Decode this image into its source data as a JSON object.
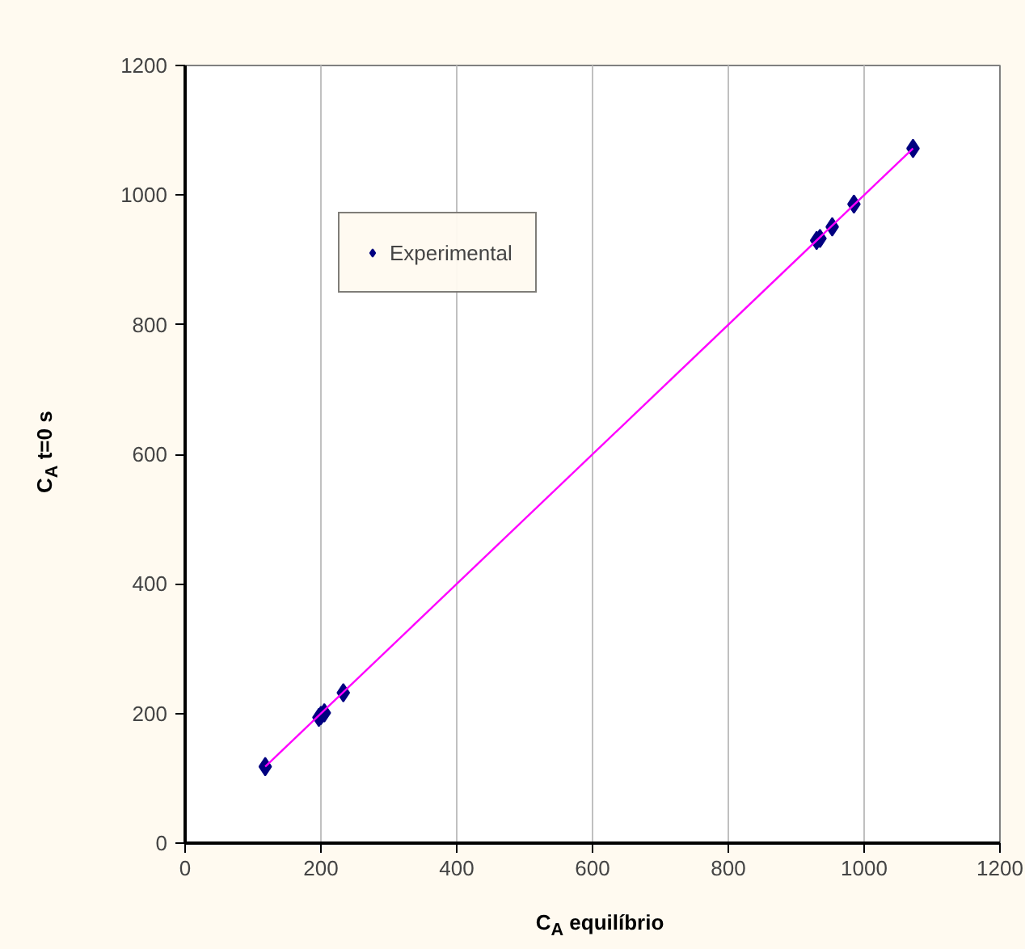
{
  "chart_data": {
    "type": "scatter",
    "xlabel": "C$_{A}$ equilíbrio",
    "ylabel": "C$_{A}$ t=0 s",
    "xlim": [
      0,
      1200
    ],
    "ylim": [
      0,
      1200
    ],
    "xticks": [
      0,
      200,
      400,
      600,
      800,
      1000,
      1200
    ],
    "yticks": [
      0,
      200,
      400,
      600,
      800,
      1000,
      1200
    ],
    "grid": "x",
    "legend": "top left",
    "series": [
      {
        "name": "Experimental",
        "marker": "diamond",
        "color": "#000080",
        "x": [
          118,
          197,
          200,
          205,
          233,
          930,
          935,
          953,
          985,
          1072
        ],
        "values": [
          118,
          194,
          197,
          201,
          232,
          930,
          933,
          951,
          986,
          1072
        ]
      },
      {
        "type": "line",
        "color": "#ff00ff",
        "x": [
          118,
          1072
        ],
        "values": [
          118,
          1072
        ]
      }
    ]
  }
}
